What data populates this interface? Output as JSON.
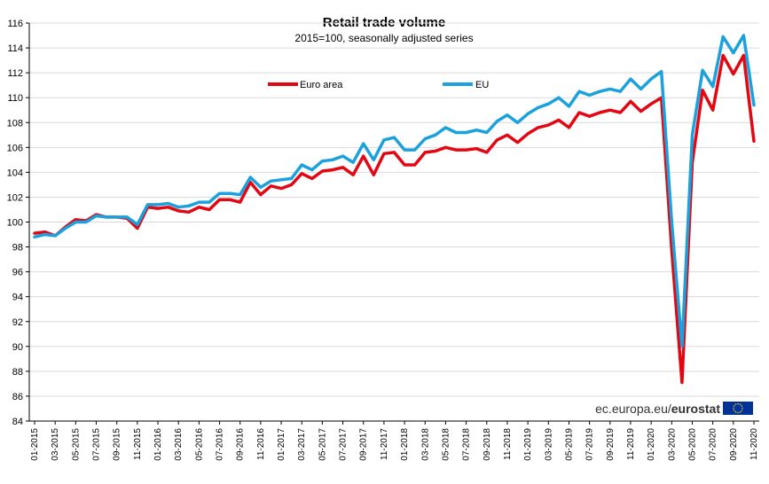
{
  "chart_data": {
    "type": "line",
    "title": "Retail trade volume",
    "subtitle": "2015=100, seasonally adjusted series",
    "xlabel": "",
    "ylabel": "",
    "ylim": [
      84,
      116
    ],
    "yticks": [
      84,
      86,
      88,
      90,
      92,
      94,
      96,
      98,
      100,
      102,
      104,
      106,
      108,
      110,
      112,
      114,
      116
    ],
    "categories": [
      "01-2015",
      "02-2015",
      "03-2015",
      "04-2015",
      "05-2015",
      "06-2015",
      "07-2015",
      "08-2015",
      "09-2015",
      "10-2015",
      "11-2015",
      "12-2015",
      "01-2016",
      "02-2016",
      "03-2016",
      "04-2016",
      "05-2016",
      "06-2016",
      "07-2016",
      "08-2016",
      "09-2016",
      "10-2016",
      "11-2016",
      "12-2016",
      "01-2017",
      "02-2017",
      "03-2017",
      "04-2017",
      "05-2017",
      "06-2017",
      "07-2017",
      "08-2017",
      "09-2017",
      "10-2017",
      "11-2017",
      "12-2017",
      "01-2018",
      "02-2018",
      "03-2018",
      "04-2018",
      "05-2018",
      "06-2018",
      "07-2018",
      "08-2018",
      "09-2018",
      "10-2018",
      "11-2018",
      "12-2018",
      "01-2019",
      "02-2019",
      "03-2019",
      "04-2019",
      "05-2019",
      "06-2019",
      "07-2019",
      "08-2019",
      "09-2019",
      "10-2019",
      "11-2019",
      "12-2019",
      "01-2020",
      "02-2020",
      "03-2020",
      "04-2020",
      "05-2020",
      "06-2020",
      "07-2020",
      "08-2020",
      "09-2020",
      "10-2020",
      "11-2020"
    ],
    "tick_labels": [
      "01-2015",
      "03-2015",
      "05-2015",
      "07-2015",
      "09-2015",
      "11-2015",
      "01-2016",
      "03-2016",
      "05-2016",
      "07-2016",
      "09-2016",
      "11-2016",
      "01-2017",
      "03-2017",
      "05-2017",
      "07-2017",
      "09-2017",
      "11-2017",
      "01-2018",
      "03-2018",
      "05-2018",
      "07-2018",
      "09-2018",
      "11-2018",
      "01-2019",
      "03-2019",
      "05-2019",
      "07-2019",
      "09-2019",
      "11-2019",
      "01-2020",
      "03-2020",
      "05-2020",
      "07-2020",
      "09-2020",
      "11-2020"
    ],
    "series": [
      {
        "name": "Euro area",
        "color": "#e30613",
        "values": [
          99.1,
          99.2,
          98.9,
          99.6,
          100.2,
          100.1,
          100.6,
          100.4,
          100.4,
          100.3,
          99.5,
          101.2,
          101.1,
          101.2,
          100.9,
          100.8,
          101.2,
          101.0,
          101.8,
          101.8,
          101.6,
          103.2,
          102.2,
          102.9,
          102.7,
          103.0,
          103.9,
          103.5,
          104.1,
          104.2,
          104.4,
          103.8,
          105.3,
          103.8,
          105.5,
          105.6,
          104.6,
          104.6,
          105.6,
          105.7,
          106.0,
          105.8,
          105.8,
          105.9,
          105.6,
          106.6,
          107.0,
          106.4,
          107.1,
          107.6,
          107.8,
          108.2,
          107.6,
          108.8,
          108.5,
          108.8,
          109.0,
          108.8,
          109.7,
          108.9,
          109.5,
          110.0,
          97.8,
          87.1,
          104.8,
          110.6,
          109.0,
          113.4,
          111.9,
          113.4,
          106.5
        ]
      },
      {
        "name": "EU",
        "color": "#1ba1dc",
        "values": [
          98.8,
          99.0,
          98.9,
          99.5,
          100.0,
          100.0,
          100.5,
          100.4,
          100.4,
          100.4,
          99.8,
          101.4,
          101.4,
          101.5,
          101.2,
          101.3,
          101.6,
          101.6,
          102.3,
          102.3,
          102.2,
          103.6,
          102.8,
          103.3,
          103.4,
          103.5,
          104.6,
          104.2,
          104.9,
          105.0,
          105.3,
          104.8,
          106.3,
          105.0,
          106.6,
          106.8,
          105.8,
          105.8,
          106.7,
          107.0,
          107.6,
          107.2,
          107.2,
          107.4,
          107.2,
          108.1,
          108.6,
          108.0,
          108.7,
          109.2,
          109.5,
          110.0,
          109.3,
          110.5,
          110.2,
          110.5,
          110.7,
          110.5,
          111.5,
          110.7,
          111.5,
          112.1,
          100.0,
          90.0,
          107.0,
          112.2,
          110.9,
          114.9,
          113.6,
          115.0,
          109.4
        ]
      }
    ],
    "legend_position": "top-center",
    "grid": true
  },
  "source": {
    "text": "ec.europa.eu/",
    "brand": "eurostat",
    "flag_icon": "eu-flag-icon"
  }
}
